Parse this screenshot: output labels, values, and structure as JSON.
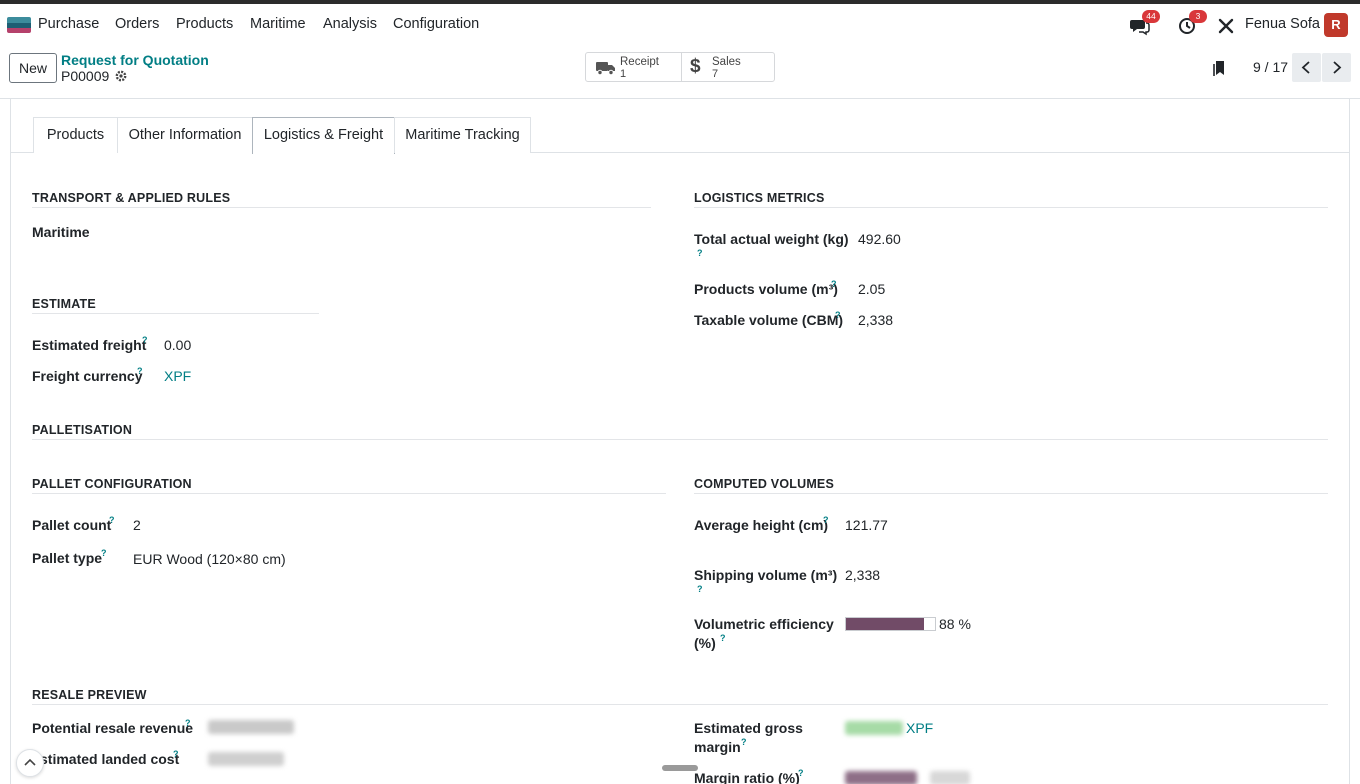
{
  "navbar": {
    "app_name": "Purchase",
    "menu": [
      "Orders",
      "Products",
      "Maritime",
      "Analysis",
      "Configuration"
    ],
    "messages_badge": "44",
    "activities_badge": "3",
    "company": "Fenua Sofa",
    "avatar_letter": "R"
  },
  "control": {
    "new_label": "New",
    "breadcrumb": "Request for Quotation",
    "record_name": "P00009",
    "smart_buttons": [
      {
        "label": "Receipt",
        "value": "1",
        "icon": "truck-icon"
      },
      {
        "label": "Sales",
        "value": "7",
        "icon": "dollar-icon"
      }
    ],
    "pager": "9 / 17"
  },
  "tabs": [
    "Products",
    "Other Information",
    "Logistics & Freight",
    "Maritime Tracking"
  ],
  "active_tab": "Logistics & Freight",
  "help_mark": "?",
  "transport": {
    "title": "TRANSPORT & APPLIED RULES",
    "mode": "Maritime"
  },
  "estimate": {
    "title": "ESTIMATE",
    "freight_label": "Estimated freight",
    "freight_value": "0.00",
    "currency_label": "Freight currency",
    "currency_value": "XPF"
  },
  "logistics": {
    "title": "LOGISTICS METRICS",
    "weight_label": "Total actual weight (kg)",
    "weight_value": "492.60",
    "volume_label": "Products volume (m³)",
    "volume_value": "2.05",
    "taxable_label": "Taxable volume (CBM)",
    "taxable_value": "2,338"
  },
  "palletisation": {
    "title": "PALLETISATION"
  },
  "pallet_config": {
    "title": "PALLET CONFIGURATION",
    "count_label": "Pallet count",
    "count_value": "2",
    "type_label": "Pallet type",
    "type_value": "EUR Wood (120×80 cm)"
  },
  "computed": {
    "title": "COMPUTED VOLUMES",
    "height_label": "Average height (cm)",
    "height_value": "121.77",
    "shipping_label": "Shipping volume (m³)",
    "shipping_value": "2,338",
    "efficiency_label_1": "Volumetric efficiency",
    "efficiency_label_2": "(%)",
    "efficiency_value": 88,
    "efficiency_text": "88 %"
  },
  "resale": {
    "title": "RESALE PREVIEW",
    "revenue_label": "Potential resale revenue",
    "landed_label": "stimated landed cost",
    "margin_label_1": "Estimated gross",
    "margin_label_2": "margin",
    "margin_currency": "XPF",
    "ratio_label": "Margin ratio (%)"
  },
  "colors": {
    "accent": "#017e84",
    "progress": "#714b67",
    "badge": "#d9373a"
  }
}
